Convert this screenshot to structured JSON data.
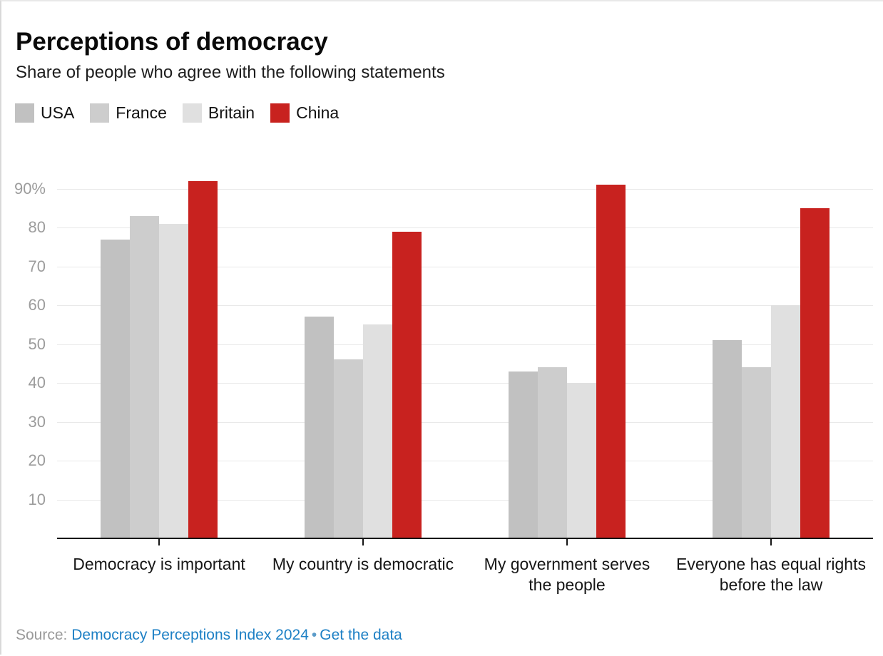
{
  "header": {
    "title": "Perceptions of democracy",
    "subtitle": "Share of people who agree with the following statements"
  },
  "footer": {
    "source_label": "Source:",
    "source_link_text": "Democracy Perceptions Index 2024",
    "separator": "•",
    "data_link_text": "Get the data"
  },
  "colors": {
    "usa": "#c1c1c1",
    "france": "#cdcdcd",
    "britain": "#e0e0e0",
    "china": "#c8221f",
    "link_blue": "#1e80c5",
    "axis": "#141414",
    "grid": "#e9e9e9",
    "ytick_label": "#9c9c9c"
  },
  "chart_data": {
    "type": "bar",
    "title": "Perceptions of democracy",
    "subtitle": "Share of people who agree with the following statements",
    "categories": [
      "Democracy is important",
      "My country is democratic",
      "My government serves the people",
      "Everyone has equal rights before the law"
    ],
    "series": [
      {
        "name": "USA",
        "color": "#c1c1c1",
        "values": [
          77,
          57,
          43,
          51
        ]
      },
      {
        "name": "France",
        "color": "#cdcdcd",
        "values": [
          83,
          46,
          44,
          44
        ]
      },
      {
        "name": "Britain",
        "color": "#e0e0e0",
        "values": [
          81,
          55,
          40,
          60
        ]
      },
      {
        "name": "China",
        "color": "#c8221f",
        "values": [
          92,
          79,
          91,
          85
        ]
      }
    ],
    "unit": "percent",
    "y_ticks": [
      10,
      20,
      30,
      40,
      50,
      60,
      70,
      80,
      90
    ],
    "y_top_tick_suffix": "%",
    "ylim": [
      0,
      96
    ],
    "grid": true,
    "legend_position": "top",
    "xlabel": "",
    "ylabel": ""
  }
}
